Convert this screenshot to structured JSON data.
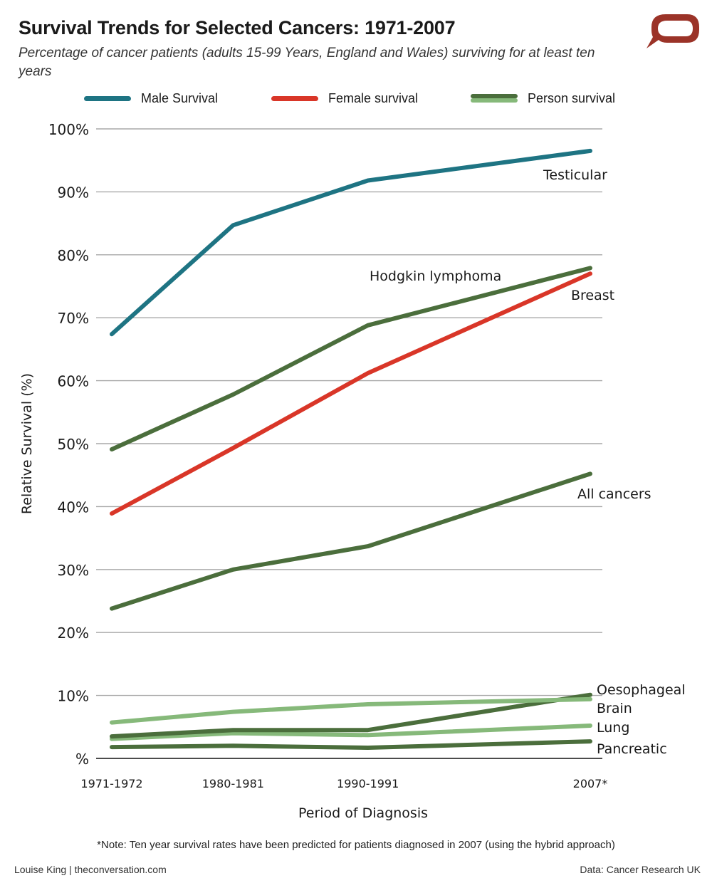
{
  "header": {
    "title": "Survival Trends for Selected Cancers: 1971-2007",
    "subtitle": "Percentage of cancer patients (adults 15-99 Years, England and Wales) surviving for at least ten years",
    "logo_icon": "speech-bubble-icon",
    "logo_color": "#9b3328"
  },
  "legend": [
    {
      "label": "Male Survival",
      "color": "#1e7483"
    },
    {
      "label": "Female survival",
      "color": "#d93628"
    },
    {
      "label": "Person survival",
      "color": "#4b6e3c",
      "color2": "#86b97a"
    }
  ],
  "chart_data": {
    "type": "line",
    "title": "Survival Trends for Selected Cancers: 1971-2007",
    "subtitle": "Percentage of cancer patients (adults 15-99 Years, England and Wales) surviving for at least ten years",
    "xlabel": "Period of Diagnosis",
    "ylabel": "Relative Survival (%)",
    "categories": [
      "1971-1972",
      "1980-1981",
      "1990-1991",
      "2007*"
    ],
    "x": [
      1971.5,
      1980.5,
      1990.5,
      2007
    ],
    "ylim": [
      0,
      100
    ],
    "yticks": [
      0,
      10,
      20,
      30,
      40,
      50,
      60,
      70,
      80,
      90,
      100
    ],
    "ytick_labels": [
      "%",
      "10%",
      "20%",
      "30%",
      "40%",
      "50%",
      "60%",
      "70%",
      "80%",
      "90%",
      "100%"
    ],
    "grid": true,
    "legend_position": "top",
    "series": [
      {
        "name": "Testicular",
        "group": "Male Survival",
        "color": "#1e7483",
        "values": [
          67.4,
          84.7,
          91.8,
          96.5
        ]
      },
      {
        "name": "Hodgkin lymphoma",
        "group": "Person survival",
        "color": "#4b6e3c",
        "values": [
          49.1,
          57.8,
          68.8,
          77.9
        ]
      },
      {
        "name": "Breast",
        "group": "Female survival",
        "color": "#d93628",
        "values": [
          38.9,
          49.3,
          61.2,
          77.0
        ]
      },
      {
        "name": "All cancers",
        "group": "Person survival",
        "color": "#4b6e3c",
        "values": [
          23.8,
          30.0,
          33.7,
          45.2
        ]
      },
      {
        "name": "Brain",
        "group": "Person survival",
        "color": "#86b97a",
        "values": [
          5.7,
          7.4,
          8.6,
          9.4
        ]
      },
      {
        "name": "Lung",
        "group": "Person survival",
        "color": "#86b97a",
        "values": [
          3.1,
          4.0,
          3.7,
          5.2
        ]
      },
      {
        "name": "Oesophageal",
        "group": "Person survival",
        "color": "#4b6e3c",
        "values": [
          3.5,
          4.5,
          4.5,
          10.1
        ]
      },
      {
        "name": "Pancreatic",
        "group": "Person survival",
        "color": "#4b6e3c",
        "values": [
          1.8,
          2.0,
          1.7,
          2.7
        ]
      }
    ],
    "annotations": [
      {
        "text": "Testicular",
        "series": "Testicular"
      },
      {
        "text": "Hodgkin lymphoma",
        "series": "Hodgkin lymphoma"
      },
      {
        "text": "Breast",
        "series": "Breast"
      },
      {
        "text": "All cancers",
        "series": "All cancers"
      },
      {
        "text": "Oesophageal",
        "series": "Oesophageal"
      },
      {
        "text": "Brain",
        "series": "Brain"
      },
      {
        "text": "Lung",
        "series": "Lung"
      },
      {
        "text": "Pancreatic",
        "series": "Pancreatic"
      }
    ],
    "note": "*Note: Ten year survival rates have been predicted for patients diagnosed in 2007 (using the hybrid approach)"
  },
  "footer": {
    "credit": "Louise King | theconversation.com",
    "source": "Data: Cancer Research UK"
  }
}
